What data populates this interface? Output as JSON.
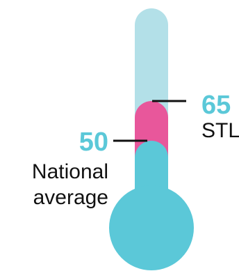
{
  "chart_data": {
    "type": "bar",
    "scale_max": 100,
    "series": [
      {
        "name": "STL",
        "value": 65,
        "value_label": "65",
        "color": "#E8579B"
      },
      {
        "name": "National average",
        "value": 50,
        "value_label": "50",
        "color": "#5BC8D8"
      }
    ],
    "labels": {
      "stl": "STL",
      "national_line1": "National",
      "national_line2": "average"
    }
  },
  "colors": {
    "tube_background": "#B3E0E8",
    "national_fill": "#5BC8D8",
    "stl_fill": "#E8579B",
    "value_text": "#5BC8D8",
    "leader_line": "#111111"
  }
}
